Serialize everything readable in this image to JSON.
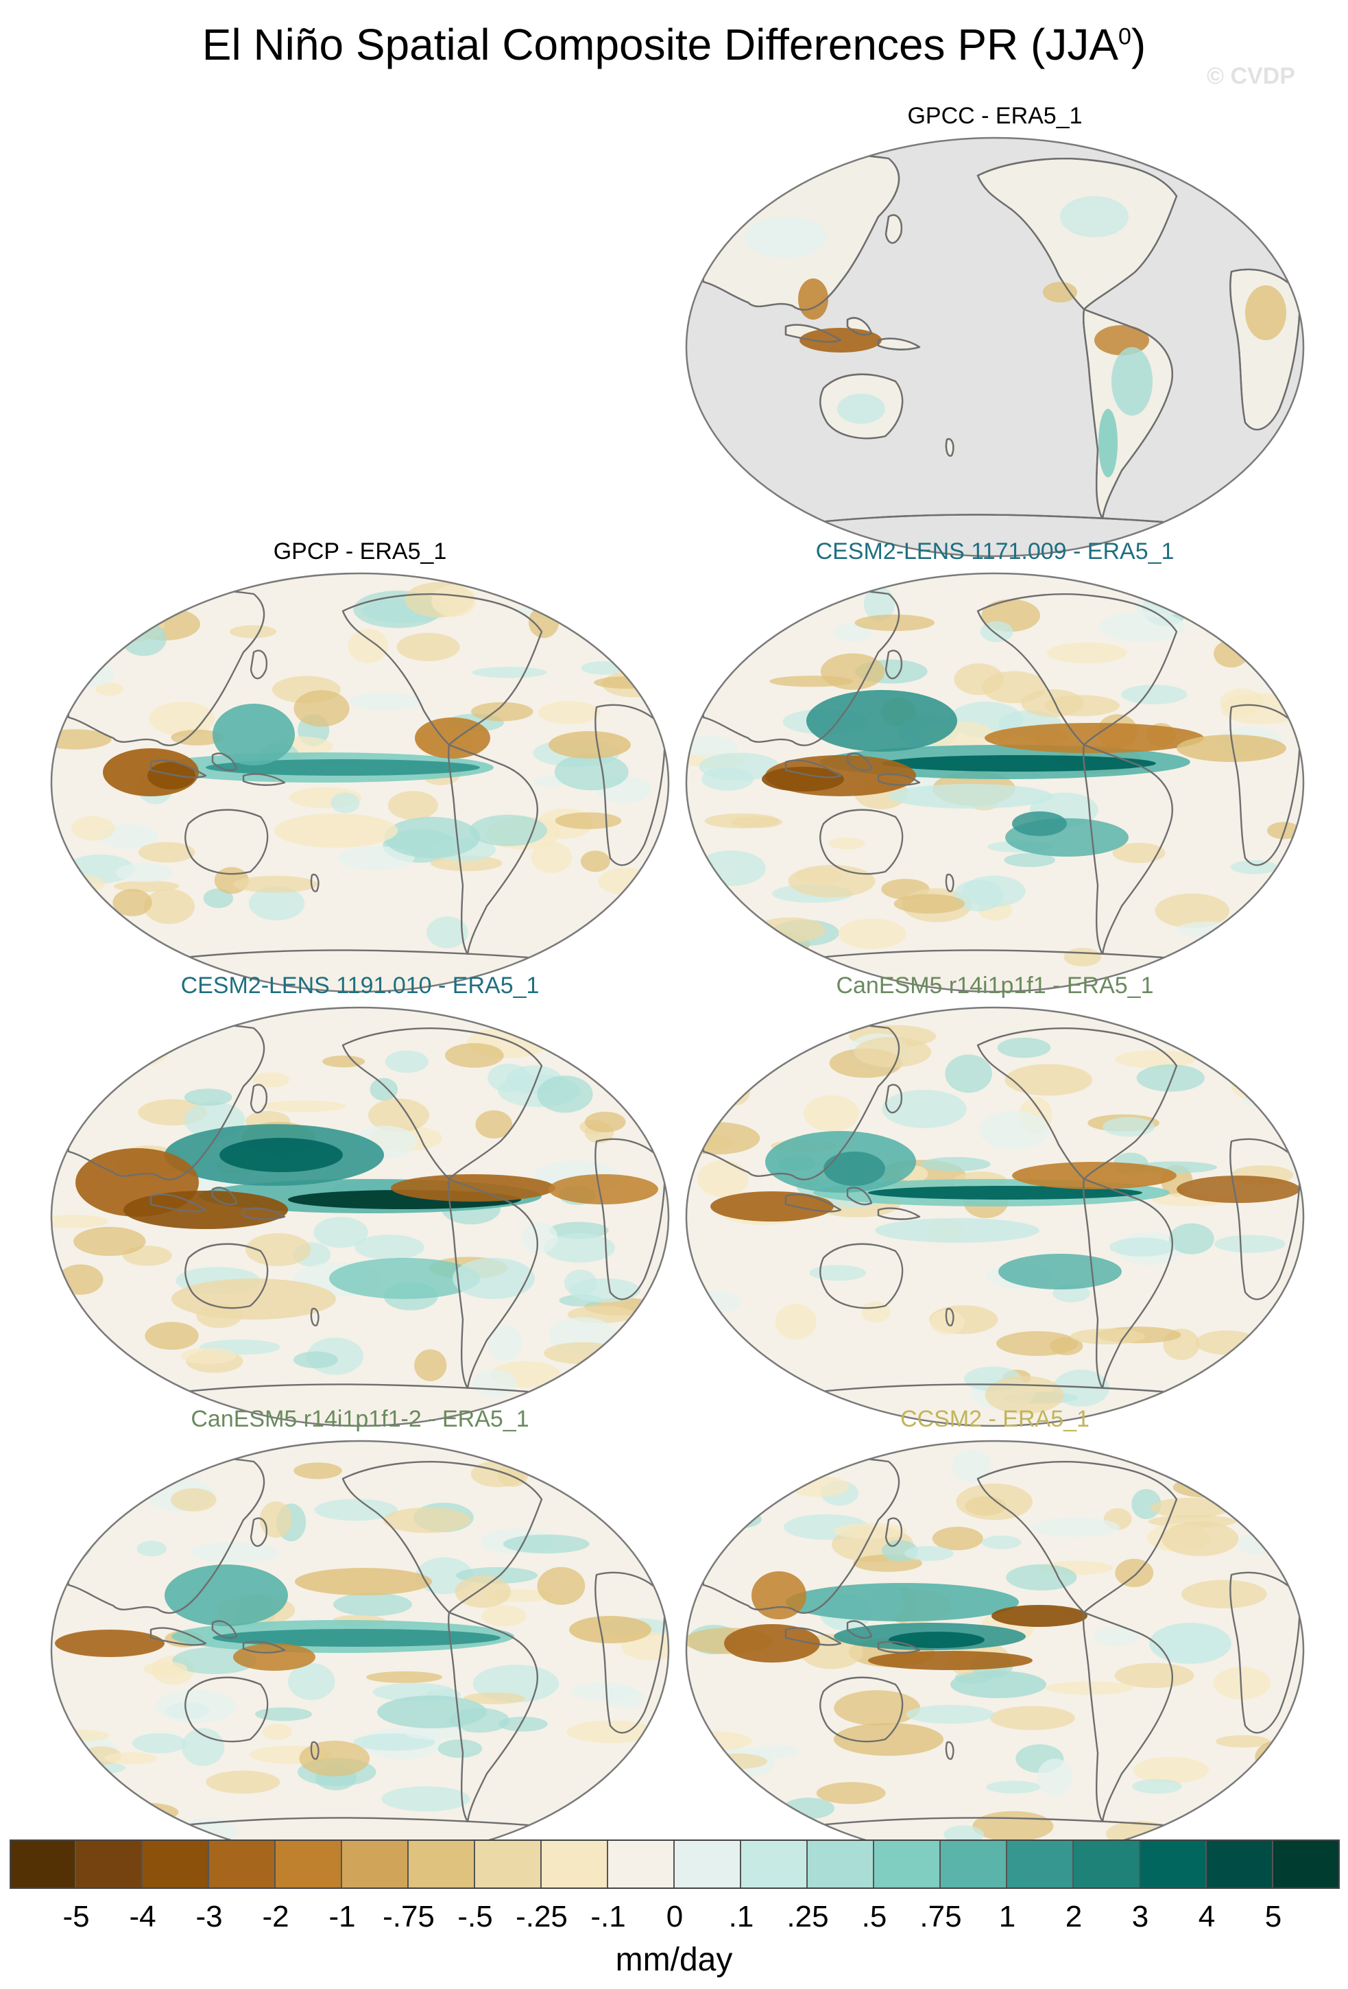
{
  "figure": {
    "title_main": "El Niño Spatial Composite Differences PR (JJA",
    "title_sup": "0",
    "title_end": ")",
    "credit": "© CVDP"
  },
  "panels": [
    {
      "label": "GPCC - ERA5_1",
      "color": "#000000",
      "land_only": true
    },
    {
      "label": "GPCP - ERA5_1",
      "color": "#000000",
      "land_only": false
    },
    {
      "label": "CESM2-LENS 1171.009 - ERA5_1",
      "color": "#1f6f80",
      "land_only": false
    },
    {
      "label": "CESM2-LENS 1191.010 - ERA5_1",
      "color": "#1f6f80",
      "land_only": false
    },
    {
      "label": "CanESM5 r14i1p1f1 - ERA5_1",
      "color": "#6b8a5e",
      "land_only": false
    },
    {
      "label": "CanESM5 r14i1p1f1-2 - ERA5_1",
      "color": "#6b8a5e",
      "land_only": false
    },
    {
      "label": "CCSM2 - ERA5_1",
      "color": "#c2b45a",
      "land_only": false
    }
  ],
  "colorbar": {
    "units": "mm/day",
    "labels": [
      "-5",
      "-4",
      "-3",
      "-2",
      "-1",
      "-.75",
      "-.5",
      "-.25",
      "-.1",
      "0",
      ".1",
      ".25",
      ".5",
      ".75",
      "1",
      "2",
      "3",
      "4",
      "5"
    ],
    "colors": [
      "#543005",
      "#744310",
      "#8c510a",
      "#a6661b",
      "#bf812d",
      "#d0a55a",
      "#dfc27d",
      "#ecd9a8",
      "#f6e8c3",
      "#f5f1e8",
      "#e4f1ef",
      "#c7eae5",
      "#a9ddd5",
      "#80cdc1",
      "#5ab4aa",
      "#35978f",
      "#1e8279",
      "#01665e",
      "#014d45",
      "#003c30"
    ]
  }
}
